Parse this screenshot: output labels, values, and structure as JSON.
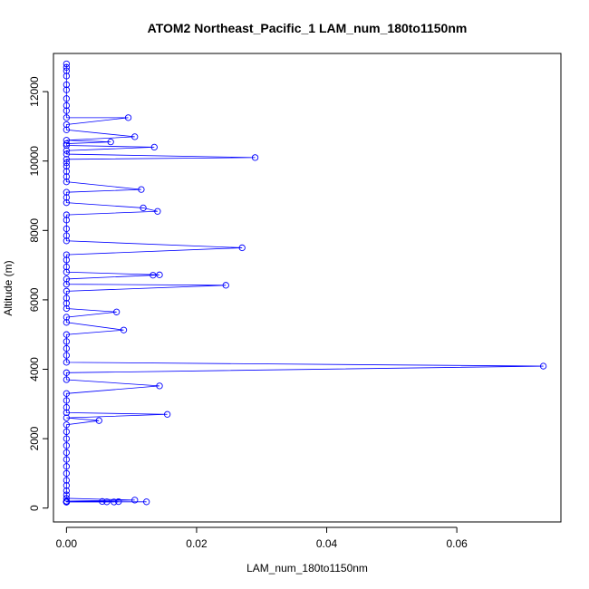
{
  "chart_data": {
    "type": "line",
    "title": "ATOM2 Northeast_Pacific_1 LAM_num_180to1150nm",
    "xlabel": "LAM_num_180to1150nm",
    "ylabel": "Altitude (m)",
    "xlim": [
      -0.002,
      0.076
    ],
    "ylim": [
      -400,
      13100
    ],
    "x_ticks": [
      0.0,
      0.02,
      0.04,
      0.06
    ],
    "x_tick_labels": [
      "0.00",
      "0.02",
      "0.04",
      "0.06"
    ],
    "y_ticks": [
      0,
      2000,
      4000,
      6000,
      8000,
      10000,
      12000
    ],
    "y_tick_labels": [
      "0",
      "2000",
      "4000",
      "6000",
      "8000",
      "10000",
      "12000"
    ],
    "grid": false,
    "marker": "open-circle",
    "series": [
      {
        "color": "#0000ff",
        "points": [
          {
            "x": 0.0,
            "y": 12800
          },
          {
            "x": 0.0,
            "y": 12700
          },
          {
            "x": 0.0,
            "y": 12600
          },
          {
            "x": 0.0,
            "y": 12450
          },
          {
            "x": 0.0,
            "y": 12200
          },
          {
            "x": 0.0,
            "y": 12050
          },
          {
            "x": 0.0,
            "y": 11800
          },
          {
            "x": 0.0,
            "y": 11600
          },
          {
            "x": 0.0,
            "y": 11450
          },
          {
            "x": 0.0,
            "y": 11250
          },
          {
            "x": 0.0095,
            "y": 11250
          },
          {
            "x": 0.0,
            "y": 11050
          },
          {
            "x": 0.0,
            "y": 10900
          },
          {
            "x": 0.0105,
            "y": 10700
          },
          {
            "x": 0.0,
            "y": 10600
          },
          {
            "x": 0.0068,
            "y": 10550
          },
          {
            "x": 0.0,
            "y": 10500
          },
          {
            "x": 0.0,
            "y": 10450
          },
          {
            "x": 0.0135,
            "y": 10400
          },
          {
            "x": 0.0,
            "y": 10300
          },
          {
            "x": 0.0,
            "y": 10200
          },
          {
            "x": 0.029,
            "y": 10100
          },
          {
            "x": 0.0,
            "y": 10050
          },
          {
            "x": 0.0,
            "y": 9950
          },
          {
            "x": 0.0,
            "y": 9850
          },
          {
            "x": 0.0,
            "y": 9700
          },
          {
            "x": 0.0,
            "y": 9550
          },
          {
            "x": 0.0,
            "y": 9400
          },
          {
            "x": 0.0115,
            "y": 9180
          },
          {
            "x": 0.0,
            "y": 9100
          },
          {
            "x": 0.0,
            "y": 8950
          },
          {
            "x": 0.0,
            "y": 8800
          },
          {
            "x": 0.0118,
            "y": 8650
          },
          {
            "x": 0.014,
            "y": 8550
          },
          {
            "x": 0.0,
            "y": 8450
          },
          {
            "x": 0.0,
            "y": 8300
          },
          {
            "x": 0.0,
            "y": 8050
          },
          {
            "x": 0.0,
            "y": 7850
          },
          {
            "x": 0.0,
            "y": 7700
          },
          {
            "x": 0.027,
            "y": 7500
          },
          {
            "x": 0.0,
            "y": 7300
          },
          {
            "x": 0.0,
            "y": 7150
          },
          {
            "x": 0.0,
            "y": 6950
          },
          {
            "x": 0.0,
            "y": 6800
          },
          {
            "x": 0.0143,
            "y": 6720
          },
          {
            "x": 0.0133,
            "y": 6710
          },
          {
            "x": 0.0,
            "y": 6600
          },
          {
            "x": 0.0,
            "y": 6450
          },
          {
            "x": 0.0245,
            "y": 6420
          },
          {
            "x": 0.0,
            "y": 6250
          },
          {
            "x": 0.0,
            "y": 6050
          },
          {
            "x": 0.0,
            "y": 5900
          },
          {
            "x": 0.0,
            "y": 5750
          },
          {
            "x": 0.0077,
            "y": 5650
          },
          {
            "x": 0.0,
            "y": 5500
          },
          {
            "x": 0.0,
            "y": 5350
          },
          {
            "x": 0.0088,
            "y": 5130
          },
          {
            "x": 0.0,
            "y": 5000
          },
          {
            "x": 0.0,
            "y": 4800
          },
          {
            "x": 0.0,
            "y": 4600
          },
          {
            "x": 0.0,
            "y": 4400
          },
          {
            "x": 0.0,
            "y": 4200
          },
          {
            "x": 0.0733,
            "y": 4090
          },
          {
            "x": 0.0,
            "y": 3900
          },
          {
            "x": 0.0,
            "y": 3700
          },
          {
            "x": 0.0143,
            "y": 3520
          },
          {
            "x": 0.0,
            "y": 3300
          },
          {
            "x": 0.0,
            "y": 3100
          },
          {
            "x": 0.0,
            "y": 2900
          },
          {
            "x": 0.0,
            "y": 2750
          },
          {
            "x": 0.0155,
            "y": 2700
          },
          {
            "x": 0.0,
            "y": 2600
          },
          {
            "x": 0.005,
            "y": 2520
          },
          {
            "x": 0.0,
            "y": 2400
          },
          {
            "x": 0.0,
            "y": 2200
          },
          {
            "x": 0.0,
            "y": 2000
          },
          {
            "x": 0.0,
            "y": 1800
          },
          {
            "x": 0.0,
            "y": 1600
          },
          {
            "x": 0.0,
            "y": 1400
          },
          {
            "x": 0.0,
            "y": 1200
          },
          {
            "x": 0.0,
            "y": 1000
          },
          {
            "x": 0.0,
            "y": 800
          },
          {
            "x": 0.0,
            "y": 650
          },
          {
            "x": 0.0,
            "y": 500
          },
          {
            "x": 0.0,
            "y": 380
          },
          {
            "x": 0.0,
            "y": 280
          },
          {
            "x": 0.0105,
            "y": 230
          },
          {
            "x": 0.0,
            "y": 200
          },
          {
            "x": 0.0055,
            "y": 190
          },
          {
            "x": 0.008,
            "y": 185
          },
          {
            "x": 0.0,
            "y": 185
          },
          {
            "x": 0.0123,
            "y": 180
          },
          {
            "x": 0.0062,
            "y": 180
          },
          {
            "x": 0.0,
            "y": 178
          },
          {
            "x": 0.0073,
            "y": 176
          },
          {
            "x": 0.0,
            "y": 175
          },
          {
            "x": 0.0,
            "y": 170
          }
        ]
      }
    ]
  }
}
